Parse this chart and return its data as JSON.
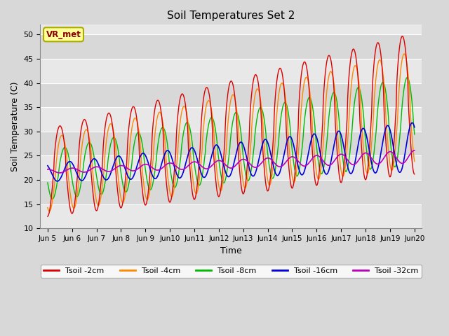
{
  "title": "Soil Temperatures Set 2",
  "xlabel": "Time",
  "ylabel": "Soil Temperature (C)",
  "ylim": [
    10,
    52
  ],
  "yticks": [
    10,
    15,
    20,
    25,
    30,
    35,
    40,
    45,
    50
  ],
  "background_color": "#d8d8d8",
  "plot_bg_color": "#e8e8e8",
  "annotation_text": "VR_met",
  "annotation_bg": "#ffff99",
  "annotation_border": "#aaaa00",
  "series_colors": {
    "Tsoil -2cm": "#dd0000",
    "Tsoil -4cm": "#ff8800",
    "Tsoil -8cm": "#00bb00",
    "Tsoil -16cm": "#0000dd",
    "Tsoil -32cm": "#bb00bb"
  },
  "start_day": 5,
  "end_day": 20,
  "num_points": 720
}
